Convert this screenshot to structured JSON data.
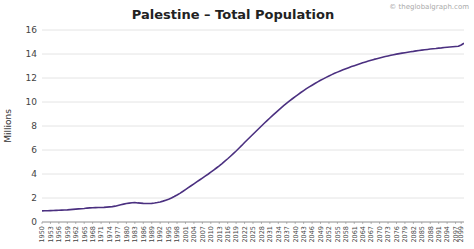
{
  "chart_data": {
    "type": "line",
    "title": "Palestine – Total Population",
    "y_label": "Millions",
    "annotations": [
      "© theglobalgraph.com"
    ],
    "color": "#4b3080",
    "grid": true,
    "xlim": [
      1950,
      2100
    ],
    "ylim": [
      0,
      16
    ],
    "yticks": [
      0,
      2,
      4,
      6,
      8,
      10,
      12,
      14,
      16
    ],
    "xticks": [
      1950,
      1953,
      1956,
      1959,
      1962,
      1965,
      1968,
      1971,
      1974,
      1977,
      1980,
      1983,
      1986,
      1989,
      1992,
      1995,
      1998,
      2001,
      2004,
      2007,
      2010,
      2013,
      2016,
      2019,
      2022,
      2025,
      2028,
      2031,
      2034,
      2037,
      2040,
      2043,
      2046,
      2049,
      2052,
      2055,
      2058,
      2061,
      2064,
      2067,
      2070,
      2073,
      2076,
      2079,
      2082,
      2085,
      2088,
      2091,
      2094,
      2097,
      2099
    ],
    "x": [
      1950,
      1951,
      1952,
      1953,
      1954,
      1955,
      1956,
      1957,
      1958,
      1959,
      1960,
      1961,
      1962,
      1963,
      1964,
      1965,
      1966,
      1967,
      1968,
      1969,
      1970,
      1971,
      1972,
      1973,
      1974,
      1975,
      1976,
      1977,
      1978,
      1979,
      1980,
      1981,
      1982,
      1983,
      1984,
      1985,
      1986,
      1987,
      1988,
      1989,
      1990,
      1991,
      1992,
      1993,
      1994,
      1995,
      1996,
      1997,
      1998,
      1999,
      2000,
      2001,
      2002,
      2003,
      2004,
      2005,
      2006,
      2007,
      2008,
      2009,
      2010,
      2011,
      2012,
      2013,
      2014,
      2015,
      2016,
      2017,
      2018,
      2019,
      2020,
      2021,
      2022,
      2023,
      2024,
      2025,
      2026,
      2027,
      2028,
      2029,
      2030,
      2031,
      2032,
      2033,
      2034,
      2035,
      2036,
      2037,
      2038,
      2039,
      2040,
      2041,
      2042,
      2043,
      2044,
      2045,
      2046,
      2047,
      2048,
      2049,
      2050,
      2051,
      2052,
      2053,
      2054,
      2055,
      2056,
      2057,
      2058,
      2059,
      2060,
      2061,
      2062,
      2063,
      2064,
      2065,
      2066,
      2067,
      2068,
      2069,
      2070,
      2071,
      2072,
      2073,
      2074,
      2075,
      2076,
      2077,
      2078,
      2079,
      2080,
      2081,
      2082,
      2083,
      2084,
      2085,
      2086,
      2087,
      2088,
      2089,
      2090,
      2091,
      2092,
      2093,
      2094,
      2095,
      2096,
      2097,
      2098,
      2099,
      2100
    ],
    "values": [
      0.93,
      0.94,
      0.94,
      0.95,
      0.96,
      0.97,
      0.98,
      0.99,
      1.0,
      1.01,
      1.03,
      1.05,
      1.07,
      1.09,
      1.11,
      1.13,
      1.16,
      1.18,
      1.19,
      1.2,
      1.21,
      1.21,
      1.22,
      1.24,
      1.26,
      1.28,
      1.32,
      1.38,
      1.44,
      1.49,
      1.54,
      1.57,
      1.6,
      1.62,
      1.59,
      1.57,
      1.55,
      1.54,
      1.54,
      1.55,
      1.58,
      1.62,
      1.67,
      1.74,
      1.82,
      1.9,
      2.0,
      2.12,
      2.25,
      2.39,
      2.54,
      2.7,
      2.86,
      3.02,
      3.18,
      3.34,
      3.5,
      3.66,
      3.82,
      3.98,
      4.15,
      4.32,
      4.5,
      4.68,
      4.87,
      5.07,
      5.27,
      5.48,
      5.7,
      5.92,
      6.15,
      6.38,
      6.62,
      6.85,
      7.08,
      7.31,
      7.54,
      7.77,
      8.0,
      8.23,
      8.45,
      8.67,
      8.89,
      9.1,
      9.31,
      9.51,
      9.71,
      9.9,
      10.09,
      10.27,
      10.45,
      10.62,
      10.79,
      10.95,
      11.11,
      11.26,
      11.4,
      11.54,
      11.68,
      11.81,
      11.93,
      12.05,
      12.17,
      12.28,
      12.39,
      12.49,
      12.59,
      12.68,
      12.77,
      12.86,
      12.95,
      13.03,
      13.11,
      13.19,
      13.27,
      13.34,
      13.41,
      13.48,
      13.55,
      13.61,
      13.67,
      13.73,
      13.79,
      13.84,
      13.89,
      13.94,
      13.99,
      14.03,
      14.07,
      14.11,
      14.15,
      14.19,
      14.22,
      14.26,
      14.29,
      14.32,
      14.35,
      14.38,
      14.41,
      14.44,
      14.46,
      14.49,
      14.51,
      14.54,
      14.56,
      14.58,
      14.6,
      14.62,
      14.64,
      14.75,
      14.9
    ]
  }
}
